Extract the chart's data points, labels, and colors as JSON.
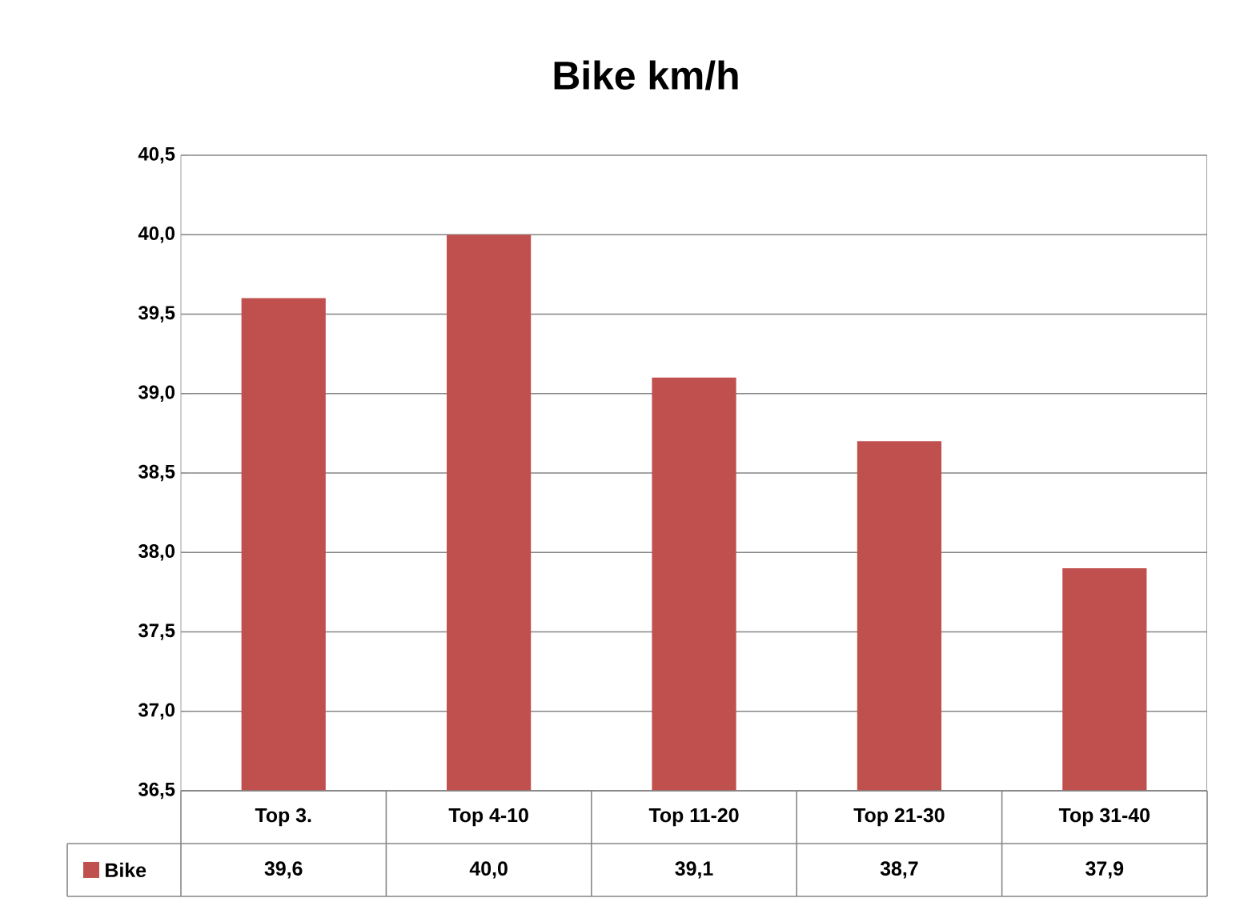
{
  "chart_data": {
    "type": "bar",
    "title": "Bike km/h",
    "categories": [
      "Top 3.",
      "Top 4-10",
      "Top 11-20",
      "Top 21-30",
      "Top 31-40"
    ],
    "series": [
      {
        "name": "Bike",
        "color": "#c0504d",
        "values": [
          39.6,
          40.0,
          39.1,
          38.7,
          37.9
        ],
        "value_labels": [
          "39,6",
          "40,0",
          "39,1",
          "38,7",
          "37,9"
        ]
      }
    ],
    "ylim": [
      36.5,
      40.5
    ],
    "yticks": [
      {
        "value": 36.5,
        "label": "36,5"
      },
      {
        "value": 37.0,
        "label": "37,0"
      },
      {
        "value": 37.5,
        "label": "37,5"
      },
      {
        "value": 38.0,
        "label": "38,0"
      },
      {
        "value": 38.5,
        "label": "38,5"
      },
      {
        "value": 39.0,
        "label": "39,0"
      },
      {
        "value": 39.5,
        "label": "39,5"
      },
      {
        "value": 40.0,
        "label": "40,0"
      },
      {
        "value": 40.5,
        "label": "40,5"
      }
    ],
    "grid": "y",
    "legend": "bottom left"
  }
}
